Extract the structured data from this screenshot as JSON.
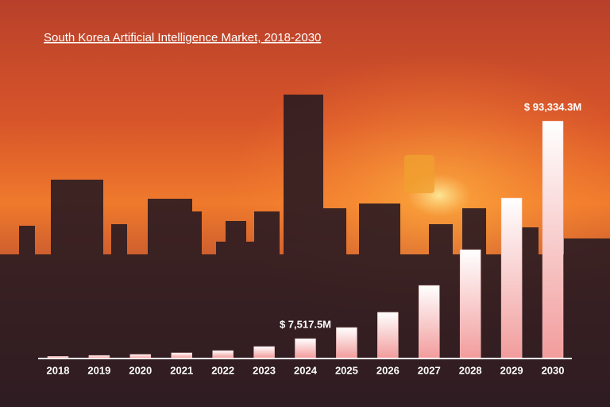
{
  "chart_data": {
    "type": "bar",
    "title": "South Korea Artificial Intelligence Market, 2018-2030",
    "categories": [
      "2018",
      "2019",
      "2020",
      "2021",
      "2022",
      "2023",
      "2024",
      "2025",
      "2026",
      "2027",
      "2028",
      "2029",
      "2030"
    ],
    "values": [
      500,
      900,
      1300,
      1900,
      2800,
      4400,
      7517.5,
      11900,
      17900,
      28500,
      42600,
      63000,
      93334.3
    ],
    "value_labels": [
      null,
      null,
      null,
      null,
      null,
      null,
      "$ 7,517.5M",
      null,
      null,
      null,
      null,
      null,
      "$ 93,334.3M"
    ],
    "color": "#f7c3c0",
    "ylim": [
      0,
      95000
    ]
  }
}
